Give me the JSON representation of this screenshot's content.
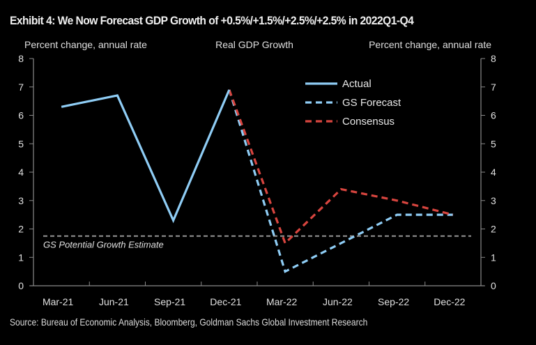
{
  "title": "Exhibit 4: We Now Forecast GDP Growth of +0.5%/+1.5%/+2.5%/+2.5% in 2022Q1-Q4",
  "source": "Source: Bureau of Economic Analysis, Bloomberg, Goldman Sachs Global Investment Research",
  "chart_data": {
    "type": "line",
    "title": "Real GDP Growth",
    "ylabel_left": "Percent change, annual rate",
    "ylabel_right": "Percent change, annual rate",
    "categories": [
      "Mar-21",
      "Jun-21",
      "Sep-21",
      "Dec-21",
      "Mar-22",
      "Jun-22",
      "Sep-22",
      "Dec-22"
    ],
    "ylim": [
      0,
      8
    ],
    "yticks": [
      0,
      1,
      2,
      3,
      4,
      5,
      6,
      7,
      8
    ],
    "grid": false,
    "legend_position": "top-right",
    "series": [
      {
        "name": "Actual",
        "style": "solid",
        "color": "#8fcdf5",
        "values": [
          6.3,
          6.7,
          2.3,
          6.9,
          null,
          null,
          null,
          null
        ]
      },
      {
        "name": "GS Forecast",
        "style": "dashed",
        "color": "#8fcdf5",
        "values": [
          null,
          null,
          null,
          6.9,
          0.5,
          1.5,
          2.5,
          2.5
        ]
      },
      {
        "name": "Consensus",
        "style": "dashed",
        "color": "#d8453f",
        "values": [
          null,
          null,
          null,
          6.9,
          1.5,
          3.4,
          3.0,
          2.5
        ]
      }
    ],
    "reference_lines": [
      {
        "name": "GS Potential Growth Estimate",
        "value": 1.75,
        "style": "dashed",
        "color": "#a0a0a0"
      }
    ],
    "annotations": [
      "GS Potential Growth Estimate"
    ]
  }
}
